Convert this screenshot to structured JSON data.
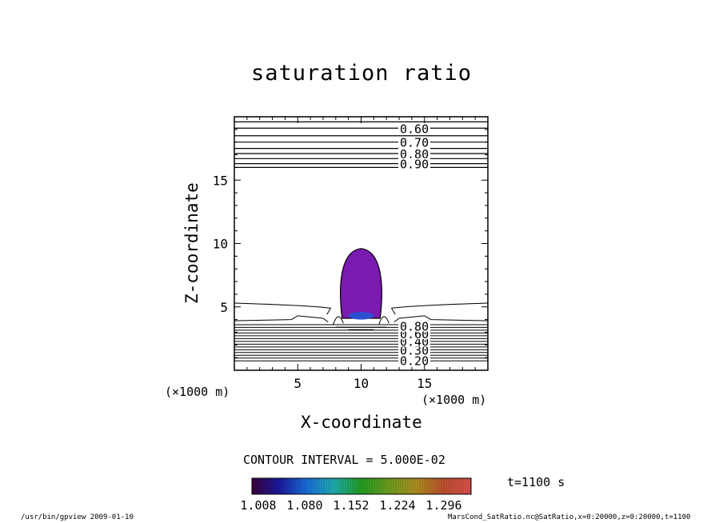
{
  "chart_data": {
    "type": "contour",
    "title": "saturation ratio",
    "xlabel": "X-coordinate",
    "ylabel": "Z-coordinate",
    "x_unit": "(×1000 m)",
    "xlim": [
      0,
      20
    ],
    "ylim": [
      0,
      20
    ],
    "xticks": [
      5,
      10,
      15
    ],
    "yticks": [
      5,
      10,
      15
    ],
    "contour_interval": "CONTOUR INTERVAL = 5.000E-02",
    "time": "t=1100 s",
    "upper_contour_labels": [
      {
        "label": "0.60",
        "z": 19.1
      },
      {
        "label": "0.70",
        "z": 18.0
      },
      {
        "label": "0.80",
        "z": 17.1
      },
      {
        "label": "0.90",
        "z": 16.3
      }
    ],
    "lower_contour_labels": [
      {
        "label": "0.20",
        "z": 0.8
      },
      {
        "label": "0.30",
        "z": 1.6
      },
      {
        "label": "0.40",
        "z": 2.3
      },
      {
        "label": "0.60",
        "z": 2.9
      },
      {
        "label": "0.80",
        "z": 3.5
      }
    ],
    "colorbar": {
      "tick_labels": [
        "1.008",
        "1.080",
        "1.152",
        "1.224",
        "1.296"
      ],
      "colors": [
        "#3d003d",
        "#1a1aa0",
        "#1a6fe0",
        "#1fb0b0",
        "#22a022",
        "#6fa020",
        "#b09020",
        "#c05030",
        "#e05050"
      ]
    },
    "supersaturated_region_color": "#7a1ab0",
    "core_color": "#2a50d0"
  },
  "footer": {
    "left": "/usr/bin/gpview   2009-01-10",
    "right": "MarsCond_SatRatio.nc@SatRatio,x=0:20000,z=0:20000,t=1100"
  }
}
